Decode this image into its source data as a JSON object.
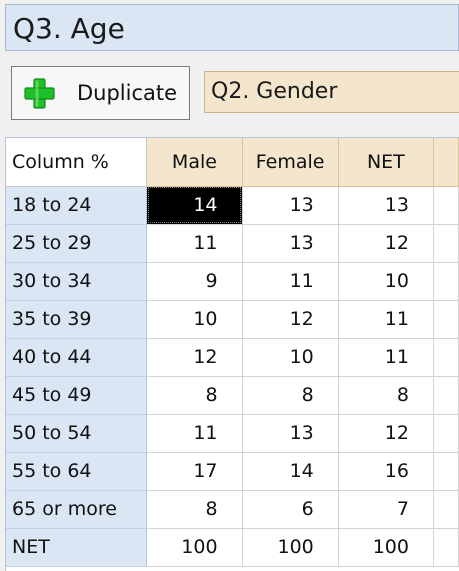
{
  "title": "Q3. Age",
  "toolbar": {
    "duplicate_label": "Duplicate",
    "column_variable": "Q2. Gender"
  },
  "table": {
    "corner_label": "Column %",
    "columns": [
      "Male",
      "Female",
      "NET"
    ],
    "rows": [
      {
        "label": "18 to 24",
        "values": [
          "14",
          "13",
          "13"
        ]
      },
      {
        "label": "25 to 29",
        "values": [
          "11",
          "13",
          "12"
        ]
      },
      {
        "label": "30 to 34",
        "values": [
          "9",
          "11",
          "10"
        ]
      },
      {
        "label": "35 to 39",
        "values": [
          "10",
          "12",
          "11"
        ]
      },
      {
        "label": "40 to 44",
        "values": [
          "12",
          "10",
          "11"
        ]
      },
      {
        "label": "45 to 49",
        "values": [
          "8",
          "8",
          "8"
        ]
      },
      {
        "label": "50 to 54",
        "values": [
          "11",
          "13",
          "12"
        ]
      },
      {
        "label": "55 to 64",
        "values": [
          "17",
          "14",
          "16"
        ]
      },
      {
        "label": "65 or more",
        "values": [
          "8",
          "6",
          "7"
        ]
      },
      {
        "label": "NET",
        "values": [
          "100",
          "100",
          "100"
        ]
      }
    ],
    "selected_cell": "18 to 24 / Male"
  },
  "colors": {
    "row_header_bg": "#dbe6f4",
    "column_header_bg": "#f3e6cd",
    "selected_cell_bg": "#000000",
    "plus_icon_green": "#1fbf2a"
  },
  "icons": {
    "duplicate": "green-plus-icon"
  }
}
